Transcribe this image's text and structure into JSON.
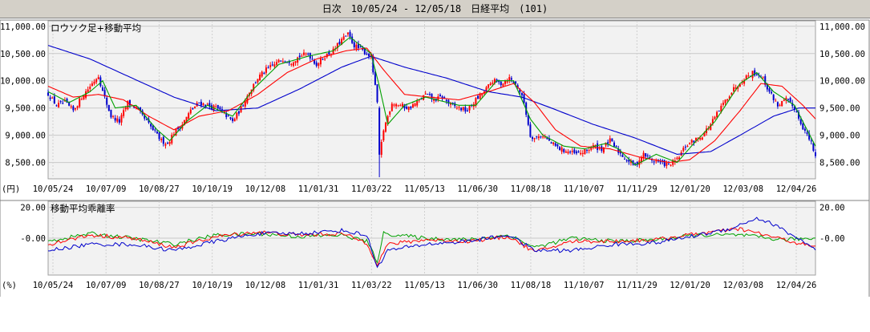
{
  "window": {
    "period": "日次",
    "range": "10/05/24 - 12/05/18",
    "index": "日経平均",
    "code": "(101)"
  },
  "chart_data": [
    {
      "type": "candlestick",
      "title": "ロウソク足+移動平均",
      "unit_label": "(円)",
      "ylim": [
        8200,
        11100
      ],
      "y_ticks": [
        "11,000.00",
        "10,500.00",
        "10,000.00",
        "9,500.00",
        "9,000.00",
        "8,500.00"
      ],
      "y_tick_values": [
        11000,
        10500,
        10000,
        9500,
        9000,
        8500
      ],
      "x_tick_labels": [
        "10/05/24",
        "10/07/09",
        "10/08/27",
        "10/10/19",
        "10/12/08",
        "11/01/31",
        "11/03/22",
        "11/05/13",
        "11/06/30",
        "11/08/18",
        "11/10/07",
        "11/11/29",
        "12/01/20",
        "12/03/08",
        "12/04/26"
      ],
      "colors": {
        "up": "#ff0000",
        "down": "#0000cc",
        "short_ma": "#00a000",
        "mid_ma": "#ff0000",
        "long_ma": "#0000cc",
        "grid": "#c8c8c8",
        "plot_bg": "#f2f2f2"
      },
      "close_series": [
        {
          "i": 0,
          "v": 9760
        },
        {
          "i": 4,
          "v": 9550
        },
        {
          "i": 8,
          "v": 9600
        },
        {
          "i": 12,
          "v": 9450
        },
        {
          "i": 16,
          "v": 9700
        },
        {
          "i": 20,
          "v": 9900
        },
        {
          "i": 24,
          "v": 10100
        },
        {
          "i": 26,
          "v": 9800
        },
        {
          "i": 30,
          "v": 9350
        },
        {
          "i": 34,
          "v": 9250
        },
        {
          "i": 38,
          "v": 9600
        },
        {
          "i": 42,
          "v": 9500
        },
        {
          "i": 46,
          "v": 9300
        },
        {
          "i": 50,
          "v": 9100
        },
        {
          "i": 54,
          "v": 8900
        },
        {
          "i": 57,
          "v": 8850
        },
        {
          "i": 60,
          "v": 9050
        },
        {
          "i": 64,
          "v": 9200
        },
        {
          "i": 68,
          "v": 9450
        },
        {
          "i": 72,
          "v": 9600
        },
        {
          "i": 76,
          "v": 9550
        },
        {
          "i": 80,
          "v": 9500
        },
        {
          "i": 84,
          "v": 9400
        },
        {
          "i": 88,
          "v": 9250
        },
        {
          "i": 92,
          "v": 9500
        },
        {
          "i": 96,
          "v": 9800
        },
        {
          "i": 100,
          "v": 10050
        },
        {
          "i": 104,
          "v": 10200
        },
        {
          "i": 108,
          "v": 10300
        },
        {
          "i": 112,
          "v": 10400
        },
        {
          "i": 116,
          "v": 10350
        },
        {
          "i": 120,
          "v": 10450
        },
        {
          "i": 124,
          "v": 10500
        },
        {
          "i": 128,
          "v": 10300
        },
        {
          "i": 132,
          "v": 10450
        },
        {
          "i": 136,
          "v": 10550
        },
        {
          "i": 140,
          "v": 10750
        },
        {
          "i": 143,
          "v": 10850
        },
        {
          "i": 146,
          "v": 10650
        },
        {
          "i": 150,
          "v": 10550
        },
        {
          "i": 154,
          "v": 10450
        },
        {
          "i": 157,
          "v": 9600
        },
        {
          "i": 158,
          "v": 8600
        },
        {
          "i": 160,
          "v": 9100
        },
        {
          "i": 164,
          "v": 9600
        },
        {
          "i": 168,
          "v": 9550
        },
        {
          "i": 172,
          "v": 9500
        },
        {
          "i": 176,
          "v": 9600
        },
        {
          "i": 180,
          "v": 9750
        },
        {
          "i": 184,
          "v": 9650
        },
        {
          "i": 188,
          "v": 9700
        },
        {
          "i": 192,
          "v": 9550
        },
        {
          "i": 196,
          "v": 9500
        },
        {
          "i": 200,
          "v": 9450
        },
        {
          "i": 204,
          "v": 9650
        },
        {
          "i": 208,
          "v": 9800
        },
        {
          "i": 212,
          "v": 10000
        },
        {
          "i": 216,
          "v": 9950
        },
        {
          "i": 220,
          "v": 10050
        },
        {
          "i": 224,
          "v": 9900
        },
        {
          "i": 227,
          "v": 9600
        },
        {
          "i": 230,
          "v": 9000
        },
        {
          "i": 232,
          "v": 8950
        },
        {
          "i": 236,
          "v": 9000
        },
        {
          "i": 240,
          "v": 8850
        },
        {
          "i": 244,
          "v": 8750
        },
        {
          "i": 248,
          "v": 8700
        },
        {
          "i": 252,
          "v": 8650
        },
        {
          "i": 256,
          "v": 8700
        },
        {
          "i": 260,
          "v": 8800
        },
        {
          "i": 264,
          "v": 8750
        },
        {
          "i": 268,
          "v": 8900
        },
        {
          "i": 272,
          "v": 8700
        },
        {
          "i": 276,
          "v": 8550
        },
        {
          "i": 280,
          "v": 8450
        },
        {
          "i": 284,
          "v": 8650
        },
        {
          "i": 288,
          "v": 8550
        },
        {
          "i": 292,
          "v": 8500
        },
        {
          "i": 296,
          "v": 8450
        },
        {
          "i": 300,
          "v": 8550
        },
        {
          "i": 304,
          "v": 8800
        },
        {
          "i": 308,
          "v": 8900
        },
        {
          "i": 312,
          "v": 9000
        },
        {
          "i": 316,
          "v": 9200
        },
        {
          "i": 320,
          "v": 9450
        },
        {
          "i": 324,
          "v": 9700
        },
        {
          "i": 328,
          "v": 9900
        },
        {
          "i": 332,
          "v": 10050
        },
        {
          "i": 336,
          "v": 10150
        },
        {
          "i": 340,
          "v": 10100
        },
        {
          "i": 344,
          "v": 9800
        },
        {
          "i": 348,
          "v": 9550
        },
        {
          "i": 352,
          "v": 9650
        },
        {
          "i": 356,
          "v": 9500
        },
        {
          "i": 360,
          "v": 9150
        },
        {
          "i": 364,
          "v": 8850
        },
        {
          "i": 366,
          "v": 8600
        }
      ],
      "ma_short": [
        {
          "i": 0,
          "v": 9800
        },
        {
          "i": 10,
          "v": 9600
        },
        {
          "i": 20,
          "v": 9800
        },
        {
          "i": 26,
          "v": 10000
        },
        {
          "i": 32,
          "v": 9500
        },
        {
          "i": 42,
          "v": 9550
        },
        {
          "i": 52,
          "v": 9100
        },
        {
          "i": 58,
          "v": 8900
        },
        {
          "i": 66,
          "v": 9250
        },
        {
          "i": 76,
          "v": 9550
        },
        {
          "i": 88,
          "v": 9350
        },
        {
          "i": 98,
          "v": 9850
        },
        {
          "i": 110,
          "v": 10300
        },
        {
          "i": 124,
          "v": 10450
        },
        {
          "i": 136,
          "v": 10550
        },
        {
          "i": 144,
          "v": 10800
        },
        {
          "i": 154,
          "v": 10500
        },
        {
          "i": 158,
          "v": 9900
        },
        {
          "i": 162,
          "v": 9200
        },
        {
          "i": 170,
          "v": 9550
        },
        {
          "i": 180,
          "v": 9700
        },
        {
          "i": 196,
          "v": 9550
        },
        {
          "i": 204,
          "v": 9550
        },
        {
          "i": 214,
          "v": 10000
        },
        {
          "i": 222,
          "v": 10000
        },
        {
          "i": 230,
          "v": 9300
        },
        {
          "i": 236,
          "v": 9000
        },
        {
          "i": 246,
          "v": 8800
        },
        {
          "i": 256,
          "v": 8750
        },
        {
          "i": 266,
          "v": 8850
        },
        {
          "i": 272,
          "v": 8750
        },
        {
          "i": 280,
          "v": 8450
        },
        {
          "i": 290,
          "v": 8650
        },
        {
          "i": 300,
          "v": 8500
        },
        {
          "i": 308,
          "v": 8850
        },
        {
          "i": 318,
          "v": 9250
        },
        {
          "i": 330,
          "v": 9950
        },
        {
          "i": 338,
          "v": 10150
        },
        {
          "i": 346,
          "v": 9800
        },
        {
          "i": 356,
          "v": 9550
        },
        {
          "i": 366,
          "v": 8800
        }
      ],
      "ma_mid": [
        {
          "i": 0,
          "v": 9900
        },
        {
          "i": 12,
          "v": 9700
        },
        {
          "i": 24,
          "v": 9750
        },
        {
          "i": 36,
          "v": 9650
        },
        {
          "i": 48,
          "v": 9350
        },
        {
          "i": 60,
          "v": 9100
        },
        {
          "i": 72,
          "v": 9350
        },
        {
          "i": 86,
          "v": 9450
        },
        {
          "i": 100,
          "v": 9750
        },
        {
          "i": 114,
          "v": 10150
        },
        {
          "i": 128,
          "v": 10400
        },
        {
          "i": 142,
          "v": 10550
        },
        {
          "i": 152,
          "v": 10600
        },
        {
          "i": 160,
          "v": 10200
        },
        {
          "i": 170,
          "v": 9750
        },
        {
          "i": 182,
          "v": 9700
        },
        {
          "i": 196,
          "v": 9650
        },
        {
          "i": 210,
          "v": 9800
        },
        {
          "i": 222,
          "v": 9950
        },
        {
          "i": 232,
          "v": 9600
        },
        {
          "i": 242,
          "v": 9100
        },
        {
          "i": 254,
          "v": 8800
        },
        {
          "i": 268,
          "v": 8750
        },
        {
          "i": 282,
          "v": 8600
        },
        {
          "i": 296,
          "v": 8500
        },
        {
          "i": 306,
          "v": 8550
        },
        {
          "i": 318,
          "v": 8900
        },
        {
          "i": 330,
          "v": 9450
        },
        {
          "i": 340,
          "v": 9950
        },
        {
          "i": 350,
          "v": 9900
        },
        {
          "i": 360,
          "v": 9550
        },
        {
          "i": 366,
          "v": 9300
        }
      ],
      "ma_long": [
        {
          "i": 0,
          "v": 10650
        },
        {
          "i": 20,
          "v": 10400
        },
        {
          "i": 40,
          "v": 10050
        },
        {
          "i": 60,
          "v": 9700
        },
        {
          "i": 80,
          "v": 9450
        },
        {
          "i": 100,
          "v": 9500
        },
        {
          "i": 120,
          "v": 9850
        },
        {
          "i": 140,
          "v": 10250
        },
        {
          "i": 154,
          "v": 10450
        },
        {
          "i": 170,
          "v": 10250
        },
        {
          "i": 190,
          "v": 10050
        },
        {
          "i": 210,
          "v": 9800
        },
        {
          "i": 226,
          "v": 9700
        },
        {
          "i": 240,
          "v": 9500
        },
        {
          "i": 260,
          "v": 9200
        },
        {
          "i": 280,
          "v": 8950
        },
        {
          "i": 300,
          "v": 8650
        },
        {
          "i": 316,
          "v": 8700
        },
        {
          "i": 330,
          "v": 9000
        },
        {
          "i": 346,
          "v": 9350
        },
        {
          "i": 358,
          "v": 9500
        },
        {
          "i": 366,
          "v": 9500
        }
      ]
    },
    {
      "type": "line",
      "title": "移動平均乖離率",
      "unit_label": "(%)",
      "ylim": [
        -24,
        24
      ],
      "y_ticks": [
        "20.00",
        "-0.00"
      ],
      "y_tick_values": [
        20,
        0
      ],
      "x_tick_labels": [
        "10/05/24",
        "10/07/09",
        "10/08/27",
        "10/10/19",
        "10/12/08",
        "11/01/31",
        "11/03/22",
        "11/05/13",
        "11/06/30",
        "11/08/18",
        "11/10/07",
        "11/11/29",
        "12/01/20",
        "12/03/08",
        "12/04/26"
      ],
      "series": [
        {
          "color": "#00a000",
          "points": [
            {
              "i": 0,
              "v": -2
            },
            {
              "i": 20,
              "v": 3
            },
            {
              "i": 40,
              "v": 0
            },
            {
              "i": 60,
              "v": -4
            },
            {
              "i": 80,
              "v": 2
            },
            {
              "i": 100,
              "v": 3
            },
            {
              "i": 120,
              "v": 1
            },
            {
              "i": 140,
              "v": 2
            },
            {
              "i": 152,
              "v": -2
            },
            {
              "i": 157,
              "v": -15
            },
            {
              "i": 160,
              "v": 3
            },
            {
              "i": 180,
              "v": 0
            },
            {
              "i": 200,
              "v": -1
            },
            {
              "i": 220,
              "v": 2
            },
            {
              "i": 232,
              "v": -6
            },
            {
              "i": 250,
              "v": 0
            },
            {
              "i": 270,
              "v": -2
            },
            {
              "i": 290,
              "v": -1
            },
            {
              "i": 310,
              "v": 2
            },
            {
              "i": 330,
              "v": 2
            },
            {
              "i": 350,
              "v": -1
            },
            {
              "i": 366,
              "v": 0
            }
          ]
        },
        {
          "color": "#ff0000",
          "points": [
            {
              "i": 0,
              "v": -4
            },
            {
              "i": 20,
              "v": 2
            },
            {
              "i": 40,
              "v": 0
            },
            {
              "i": 60,
              "v": -6
            },
            {
              "i": 80,
              "v": 1
            },
            {
              "i": 100,
              "v": 4
            },
            {
              "i": 120,
              "v": 2
            },
            {
              "i": 140,
              "v": 3
            },
            {
              "i": 152,
              "v": -3
            },
            {
              "i": 157,
              "v": -17
            },
            {
              "i": 162,
              "v": -4
            },
            {
              "i": 180,
              "v": -1
            },
            {
              "i": 200,
              "v": -2
            },
            {
              "i": 220,
              "v": 1
            },
            {
              "i": 232,
              "v": -9
            },
            {
              "i": 250,
              "v": -2
            },
            {
              "i": 270,
              "v": -2
            },
            {
              "i": 290,
              "v": -1
            },
            {
              "i": 310,
              "v": 3
            },
            {
              "i": 330,
              "v": 6
            },
            {
              "i": 345,
              "v": 1
            },
            {
              "i": 360,
              "v": -4
            },
            {
              "i": 366,
              "v": -6
            }
          ]
        },
        {
          "color": "#0000cc",
          "points": [
            {
              "i": 0,
              "v": -8
            },
            {
              "i": 20,
              "v": -4
            },
            {
              "i": 40,
              "v": -4
            },
            {
              "i": 60,
              "v": -8
            },
            {
              "i": 80,
              "v": -2
            },
            {
              "i": 100,
              "v": 3
            },
            {
              "i": 120,
              "v": 3
            },
            {
              "i": 140,
              "v": 5
            },
            {
              "i": 152,
              "v": 2
            },
            {
              "i": 157,
              "v": -19
            },
            {
              "i": 162,
              "v": -8
            },
            {
              "i": 180,
              "v": -4
            },
            {
              "i": 200,
              "v": -2
            },
            {
              "i": 220,
              "v": 2
            },
            {
              "i": 232,
              "v": -8
            },
            {
              "i": 250,
              "v": -8
            },
            {
              "i": 270,
              "v": -4
            },
            {
              "i": 290,
              "v": -3
            },
            {
              "i": 310,
              "v": 2
            },
            {
              "i": 325,
              "v": 6
            },
            {
              "i": 338,
              "v": 13
            },
            {
              "i": 346,
              "v": 9
            },
            {
              "i": 360,
              "v": -2
            },
            {
              "i": 366,
              "v": -8
            }
          ]
        }
      ]
    }
  ]
}
